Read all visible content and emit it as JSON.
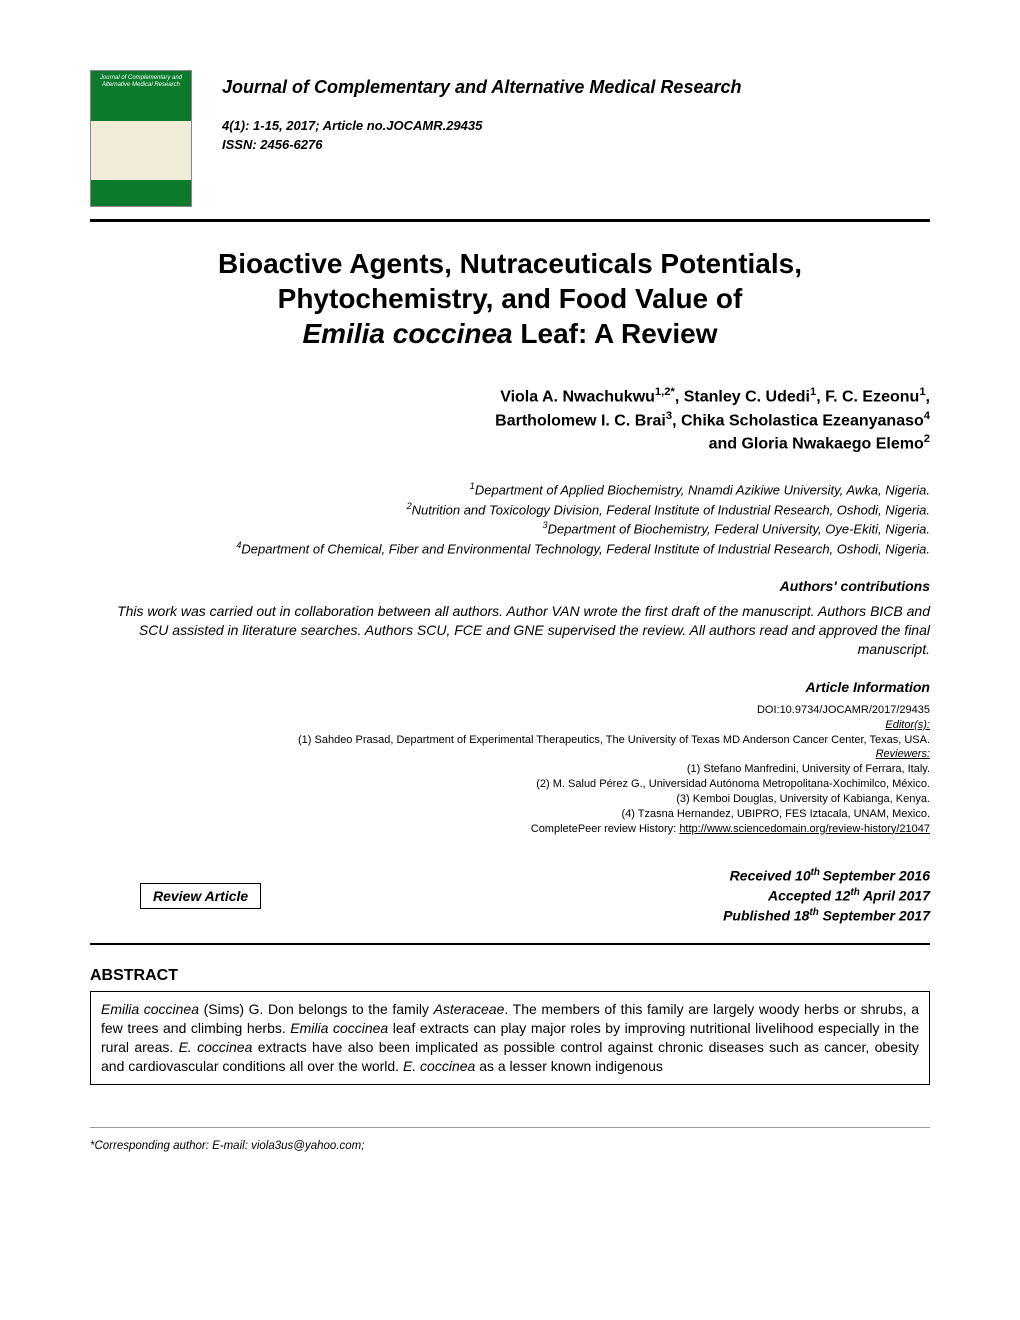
{
  "journal": {
    "cover_text": "Journal of Complementary and Alternative Medical Research",
    "title": "Journal of Complementary and Alternative Medical Research",
    "issue_line1": "4(1): 1-15, 2017; Article no.JOCAMR.29435",
    "issn_line": "ISSN: 2456-6276"
  },
  "title": {
    "line1": "Bioactive Agents, Nutraceuticals Potentials,",
    "line2": "Phytochemistry, and Food Value of",
    "line3_italic": "Emilia coccinea",
    "line3_rest": " Leaf: A Review"
  },
  "authors_html": "Viola A. Nwachukwu<sup>1,2*</sup>, Stanley C. Udedi<sup>1</sup>, F. C. Ezeonu<sup>1</sup>,<br>Bartholomew I. C. Brai<sup>3</sup>, Chika Scholastica Ezeanyanaso<sup>4</sup><br>and Gloria Nwakaego Elemo<sup>2</sup>",
  "affiliations_html": "<sup>1</sup>Department of Applied Biochemistry, Nnamdi Azikiwe University, Awka, Nigeria.<br><sup>2</sup>Nutrition and Toxicology Division, Federal Institute of Industrial Research, Oshodi, Nigeria.<br><sup>3</sup>Department of Biochemistry, Federal University, Oye-Ekiti, Nigeria.<br><sup>4</sup>Department of Chemical, Fiber and Environmental Technology, Federal Institute of Industrial Research, Oshodi, Nigeria.",
  "contrib": {
    "heading": "Authors' contributions",
    "text": "This work was carried out in collaboration between all authors. Author VAN wrote the first draft of the manuscript. Authors BICB and SCU assisted in literature searches. Authors SCU, FCE and GNE supervised the review. All authors read and approved the final manuscript."
  },
  "article_info": {
    "heading": "Article Information",
    "doi": "DOI:10.9734/JOCAMR/2017/29435",
    "editors_label": "Editor(s):",
    "editors": "(1) Sahdeo Prasad, Department of Experimental Therapeutics, The University of Texas MD Anderson Cancer Center, Texas, USA.",
    "reviewers_label": "Reviewers:",
    "reviewers": [
      "(1) Stefano Manfredini, University of Ferrara, Italy.",
      "(2) M. Salud Pérez G., Universidad Autónoma Metropolitana-Xochimilco, México.",
      "(3) Kemboi Douglas, University of Kabianga, Kenya.",
      "(4) Tzasna Hernandez, UBIPRO, FES Iztacala, UNAM, Mexico."
    ],
    "history_label": "CompletePeer review History: ",
    "history_url": "http://www.sciencedomain.org/review-history/21047"
  },
  "dates": {
    "received_html": "Received 10<sup>th </sup>September 2016",
    "accepted_html": "Accepted 12<sup>th</sup> April 2017",
    "published_html": "Published 18<sup>th</sup> September 2017"
  },
  "review_article_label": "Review Article",
  "abstract": {
    "heading": "ABSTRACT",
    "text_parts": [
      {
        "italic": true,
        "t": "Emilia coccinea"
      },
      {
        "italic": false,
        "t": " (Sims) G. Don belongs to the family "
      },
      {
        "italic": true,
        "t": "Asteraceae"
      },
      {
        "italic": false,
        "t": ". The members of this family are largely woody herbs or shrubs, a few trees and climbing herbs. "
      },
      {
        "italic": true,
        "t": "Emilia coccinea"
      },
      {
        "italic": false,
        "t": " leaf extracts can play major roles by improving nutritional livelihood especially in the rural areas.  "
      },
      {
        "italic": true,
        "t": "E. coccinea"
      },
      {
        "italic": false,
        "t": " extracts have also been implicated as possible control against chronic diseases such as cancer, obesity and cardiovascular conditions all over the world. "
      },
      {
        "italic": true,
        "t": "E. coccinea"
      },
      {
        "italic": false,
        "t": " as a lesser known indigenous"
      }
    ]
  },
  "footer": "*Corresponding author: E-mail: viola3us@yahoo.com;"
}
